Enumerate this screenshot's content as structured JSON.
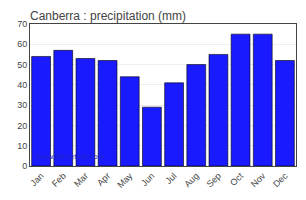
{
  "chart_data": {
    "type": "bar",
    "title": "Canberra : precipitation (mm)",
    "categories": [
      "Jan",
      "Feb",
      "Mar",
      "Apr",
      "May",
      "Jun",
      "Jul",
      "Aug",
      "Sep",
      "Oct",
      "Nov",
      "Dec"
    ],
    "values": [
      54,
      57,
      53,
      52,
      44,
      29,
      41,
      50,
      55,
      65,
      65,
      52
    ],
    "color": "#1a1aff",
    "ylim": [
      0,
      70
    ],
    "yticks": [
      0,
      10,
      20,
      30,
      40,
      50,
      60,
      70
    ],
    "grid": true,
    "annotations": [
      {
        "text": "www.allmetsat.com",
        "color": "#2222cc"
      }
    ]
  }
}
